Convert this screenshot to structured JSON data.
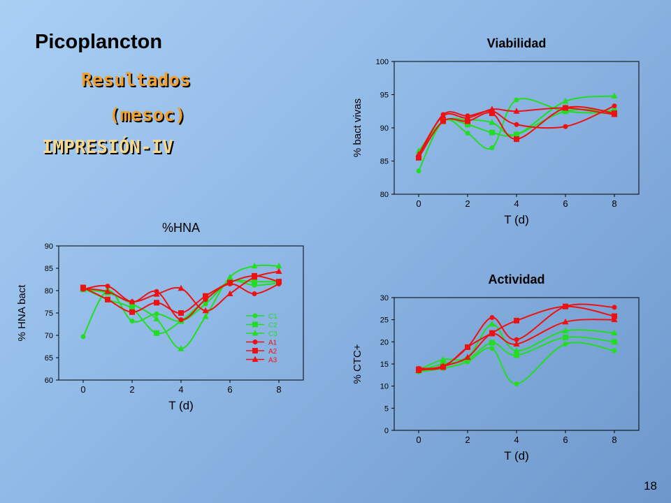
{
  "slide": {
    "title": "Picoplancton",
    "line1": "Resultados",
    "line2": "(mesoc)",
    "line3": "IMPRESIÓN-IV",
    "page_number": "18"
  },
  "series_colors": {
    "C": "#22dd22",
    "A": "#ee1111"
  },
  "chart_data": [
    {
      "type": "line",
      "title": "%HNA",
      "xlabel": "T (d)",
      "ylabel": "% HNA bact",
      "xlim": [
        -1,
        9
      ],
      "ylim": [
        60,
        90
      ],
      "xticks": [
        0,
        2,
        4,
        6,
        8
      ],
      "yticks": [
        60,
        65,
        70,
        75,
        80,
        85,
        90
      ],
      "legend": "right",
      "series": [
        {
          "name": "C1",
          "marker": "circle",
          "group": "C",
          "x": [
            0,
            1,
            2,
            3,
            4,
            5,
            6,
            7,
            8
          ],
          "y": [
            69.7,
            80.0,
            73.2,
            74.8,
            73.2,
            77.0,
            82.0,
            81.2,
            81.7
          ]
        },
        {
          "name": "C2",
          "marker": "square",
          "group": "C",
          "x": [
            0,
            1,
            2,
            3,
            4,
            5,
            6,
            7,
            8
          ],
          "y": [
            80.5,
            78.0,
            76.0,
            70.5,
            73.2,
            78.0,
            82.0,
            82.0,
            82.0
          ]
        },
        {
          "name": "C3",
          "marker": "triangle",
          "group": "C",
          "x": [
            0,
            1,
            2,
            3,
            4,
            5,
            6,
            7,
            8
          ],
          "y": [
            80.2,
            79.5,
            77.0,
            73.7,
            67.0,
            74.2,
            83.0,
            85.5,
            85.5
          ]
        },
        {
          "name": "A1",
          "marker": "circle",
          "group": "A",
          "x": [
            0,
            1,
            2,
            3,
            4,
            5,
            6,
            7,
            8
          ],
          "y": [
            80.3,
            81.0,
            77.5,
            79.8,
            73.5,
            78.0,
            81.5,
            79.3,
            81.5
          ]
        },
        {
          "name": "A2",
          "marker": "square",
          "group": "A",
          "x": [
            0,
            1,
            2,
            3,
            4,
            5,
            6,
            7,
            8
          ],
          "y": [
            80.7,
            78.0,
            75.2,
            77.3,
            75.0,
            78.8,
            81.8,
            83.3,
            82.0
          ]
        },
        {
          "name": "A3",
          "marker": "triangle",
          "group": "A",
          "x": [
            0,
            1,
            2,
            3,
            4,
            5,
            6,
            7,
            8
          ],
          "y": [
            80.5,
            79.8,
            77.5,
            79.2,
            80.5,
            75.5,
            79.3,
            83.0,
            84.3
          ]
        }
      ]
    },
    {
      "type": "line",
      "title": "Viabilidad",
      "xlabel": "T (d)",
      "ylabel": "% bact vivas",
      "xlim": [
        -1,
        9
      ],
      "ylim": [
        80,
        100
      ],
      "xticks": [
        0,
        2,
        4,
        6,
        8
      ],
      "yticks": [
        80,
        85,
        90,
        95,
        100
      ],
      "series": [
        {
          "group": "C",
          "marker": "circle",
          "x": [
            0,
            1,
            2,
            3,
            4,
            6,
            8
          ],
          "y": [
            83.5,
            91.0,
            89.2,
            87.0,
            94.2,
            92.5,
            92.2
          ]
        },
        {
          "group": "C",
          "marker": "square",
          "x": [
            0,
            1,
            2,
            3,
            4,
            6,
            8
          ],
          "y": [
            85.5,
            91.0,
            90.5,
            89.3,
            89.0,
            92.5,
            92.5
          ]
        },
        {
          "group": "C",
          "marker": "triangle",
          "x": [
            0,
            1,
            2,
            3,
            4,
            6,
            8
          ],
          "y": [
            86.5,
            91.0,
            91.2,
            90.8,
            89.0,
            94.0,
            94.8
          ]
        },
        {
          "group": "A",
          "marker": "circle",
          "x": [
            0,
            1,
            2,
            3,
            4,
            6,
            8
          ],
          "y": [
            85.5,
            92.0,
            91.8,
            92.5,
            90.5,
            90.2,
            93.3
          ]
        },
        {
          "group": "A",
          "marker": "square",
          "x": [
            0,
            1,
            2,
            3,
            4,
            6,
            8
          ],
          "y": [
            85.5,
            91.0,
            91.0,
            92.2,
            88.3,
            93.0,
            92.2
          ]
        },
        {
          "group": "A",
          "marker": "triangle",
          "x": [
            0,
            1,
            2,
            3,
            4,
            6,
            8
          ],
          "y": [
            86.0,
            91.8,
            91.5,
            92.8,
            92.5,
            93.0,
            92.0
          ]
        }
      ]
    },
    {
      "type": "line",
      "title": "Actividad",
      "xlabel": "T (d)",
      "ylabel": "% CTC+",
      "xlim": [
        -1,
        9
      ],
      "ylim": [
        0,
        30
      ],
      "xticks": [
        0,
        2,
        4,
        6,
        8
      ],
      "yticks": [
        0,
        5,
        10,
        15,
        20,
        25,
        30
      ],
      "series": [
        {
          "group": "C",
          "marker": "circle",
          "x": [
            0,
            1,
            2,
            3,
            4,
            6,
            8
          ],
          "y": [
            13.2,
            14.0,
            15.5,
            18.5,
            10.5,
            19.5,
            18.0
          ]
        },
        {
          "group": "C",
          "marker": "square",
          "x": [
            0,
            1,
            2,
            3,
            4,
            6,
            8
          ],
          "y": [
            13.5,
            15.0,
            16.0,
            19.8,
            17.0,
            21.0,
            20.0
          ]
        },
        {
          "group": "C",
          "marker": "triangle",
          "x": [
            0,
            1,
            2,
            3,
            4,
            6,
            8
          ],
          "y": [
            13.7,
            16.0,
            16.5,
            24.0,
            18.0,
            22.5,
            22.0
          ]
        },
        {
          "group": "A",
          "marker": "circle",
          "x": [
            0,
            1,
            2,
            3,
            4,
            6,
            8
          ],
          "y": [
            14.0,
            14.5,
            18.8,
            25.5,
            20.5,
            28.0,
            27.8
          ]
        },
        {
          "group": "A",
          "marker": "square",
          "x": [
            0,
            1,
            2,
            3,
            4,
            6,
            8
          ],
          "y": [
            13.8,
            14.3,
            18.8,
            22.0,
            24.8,
            28.0,
            25.8
          ]
        },
        {
          "group": "A",
          "marker": "triangle",
          "x": [
            0,
            1,
            2,
            3,
            4,
            6,
            8
          ],
          "y": [
            13.5,
            14.5,
            16.5,
            21.8,
            19.5,
            24.5,
            25.0
          ]
        }
      ]
    }
  ]
}
